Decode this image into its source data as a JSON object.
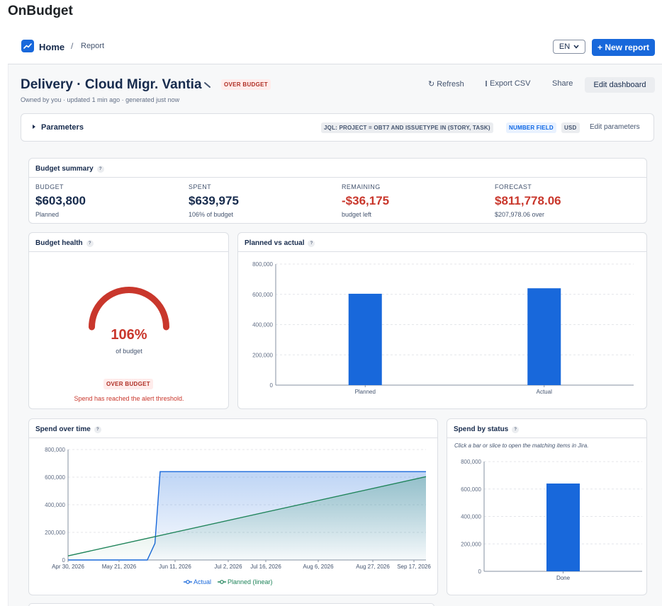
{
  "app": {
    "title": "OnBudget"
  },
  "nav": {
    "home": "Home",
    "separator": "/",
    "current": "Report",
    "language": "EN",
    "new_report": "+ New report"
  },
  "dashboard": {
    "title": "Delivery · Cloud Migr. Vantia",
    "status_badge": "OVER BUDGET",
    "meta": "Owned by you · updated 1 min ago · generated just now",
    "actions": {
      "refresh": "Refresh",
      "export": "Export CSV",
      "share": "Share",
      "edit": "Edit dashboard"
    }
  },
  "parameters": {
    "label": "Parameters",
    "jql": "JQL: PROJECT = OBT7 AND ISSUETYPE IN (STORY, TASK)",
    "field": "NUMBER FIELD",
    "currency": "USD",
    "edit": "Edit parameters"
  },
  "summary": {
    "title": "Budget summary",
    "help": "?",
    "kpis": [
      {
        "label": "BUDGET",
        "value": "$603,800",
        "sub": "Planned",
        "color": "#172b4d"
      },
      {
        "label": "SPENT",
        "value": "$639,975",
        "sub": "106% of budget",
        "color": "#172b4d"
      },
      {
        "label": "REMAINING",
        "value": "-$36,175",
        "sub": "budget left",
        "color": "#c9372c"
      },
      {
        "label": "FORECAST",
        "value": "$811,778.06",
        "sub": "$207,978.06 over",
        "color": "#c9372c"
      }
    ]
  },
  "health": {
    "title": "Budget health",
    "help": "?",
    "percent": "106%",
    "of_label": "of budget",
    "badge": "OVER BUDGET",
    "message": "Spend has reached the alert threshold.",
    "color": "#c9372c"
  },
  "planned_vs_actual": {
    "title": "Planned vs actual",
    "help": "?"
  },
  "spend_over_time": {
    "title": "Spend over time",
    "help": "?"
  },
  "spend_by_status": {
    "title": "Spend by status",
    "help": "?",
    "hint": "Click a bar or slice to open the matching items in Jira."
  },
  "colors": {
    "accent": "#1868db",
    "danger": "#c9372c",
    "planned_line": "#1f845a"
  },
  "chart_data": [
    {
      "id": "planned_vs_actual",
      "type": "bar",
      "categories": [
        "Planned",
        "Actual"
      ],
      "values": [
        603800,
        639975
      ],
      "ylim": [
        0,
        800000
      ],
      "yticks": [
        "0",
        "200,000",
        "400,000",
        "600,000",
        "800,000"
      ],
      "ytick_values": [
        0,
        200000,
        400000,
        600000,
        800000
      ],
      "color": "#1868db",
      "grid": true
    },
    {
      "id": "spend_over_time",
      "type": "area",
      "x_tick_labels": [
        "Apr 30, 2026",
        "May 21, 2026",
        "Jun 11, 2026",
        "Jul 2, 2026",
        "Jul 16, 2026",
        "Aug 6, 2026",
        "Aug 27, 2026",
        "Sep 17, 2026"
      ],
      "yticks": [
        "0",
        "200,000",
        "400,000",
        "600,000",
        "800,000"
      ],
      "ytick_values": [
        0,
        200000,
        400000,
        600000,
        800000
      ],
      "ylim": [
        0,
        800000
      ],
      "x_range": [
        "2026-04-30",
        "2026-09-17"
      ],
      "series": [
        {
          "name": "Actual",
          "color": "#1868db",
          "points": [
            [
              "2026-04-30",
              0
            ],
            [
              "2026-05-31",
              0
            ],
            [
              "2026-06-03",
              120000
            ],
            [
              "2026-06-05",
              639975
            ],
            [
              "2026-09-17",
              639975
            ]
          ]
        },
        {
          "name": "Planned (linear)",
          "color": "#1f845a",
          "points": [
            [
              "2026-04-30",
              30000
            ],
            [
              "2026-09-17",
              603800
            ]
          ]
        }
      ],
      "legend": "bottom",
      "grid": true
    },
    {
      "id": "spend_by_status",
      "type": "bar",
      "categories": [
        "Done"
      ],
      "values": [
        639975
      ],
      "ylim": [
        0,
        800000
      ],
      "yticks": [
        "0",
        "200,000",
        "400,000",
        "600,000",
        "800,000"
      ],
      "ytick_values": [
        0,
        200000,
        400000,
        600000,
        800000
      ],
      "color": "#1868db",
      "grid": true
    }
  ]
}
